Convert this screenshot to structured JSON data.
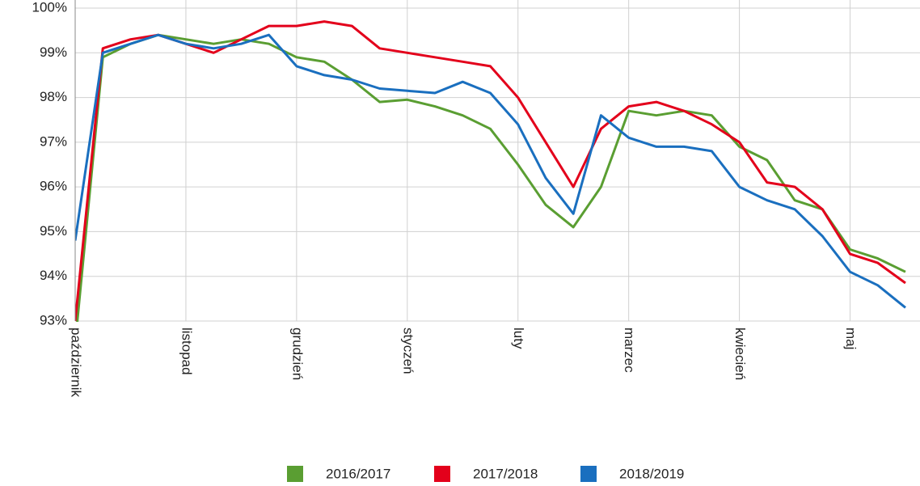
{
  "chart_data": {
    "type": "line",
    "categories": [
      "październik",
      null,
      null,
      null,
      "listopad",
      null,
      null,
      null,
      "grudzień",
      null,
      null,
      null,
      "styczeń",
      null,
      null,
      null,
      "luty",
      null,
      null,
      null,
      "marzec",
      null,
      null,
      null,
      "kwiecień",
      null,
      null,
      null,
      "maj",
      null,
      null
    ],
    "series": [
      {
        "name": "2016/2017",
        "color": "#5a9e32",
        "values": [
          92.5,
          98.9,
          99.2,
          99.4,
          99.3,
          99.2,
          99.3,
          99.2,
          98.9,
          98.8,
          98.4,
          97.9,
          97.95,
          97.8,
          97.6,
          97.3,
          96.5,
          95.6,
          95.1,
          96.0,
          97.7,
          97.6,
          97.7,
          97.6,
          96.9,
          96.6,
          95.7,
          95.5,
          94.6,
          94.4,
          94.1
        ]
      },
      {
        "name": "2017/2018",
        "color": "#e3001b",
        "values": [
          93.0,
          99.1,
          99.3,
          99.4,
          99.2,
          99.0,
          99.3,
          99.6,
          99.6,
          99.7,
          99.6,
          99.1,
          99.0,
          98.9,
          98.8,
          98.7,
          98.0,
          97.0,
          96.0,
          97.3,
          97.8,
          97.9,
          97.7,
          97.4,
          97.0,
          96.1,
          96.0,
          95.5,
          94.5,
          94.3,
          93.85
        ]
      },
      {
        "name": "2018/2019",
        "color": "#1a6fbf",
        "values": [
          94.8,
          99.0,
          99.2,
          99.4,
          99.2,
          99.1,
          99.2,
          99.4,
          98.7,
          98.5,
          98.4,
          98.2,
          98.15,
          98.1,
          98.35,
          98.1,
          97.4,
          96.2,
          95.4,
          97.6,
          97.1,
          96.9,
          96.9,
          96.8,
          96.0,
          95.7,
          95.5,
          94.9,
          94.1,
          93.8,
          93.3
        ]
      }
    ],
    "ylim": [
      93,
      100
    ],
    "yticks": [
      {
        "value": 93,
        "label": "93%"
      },
      {
        "value": 94,
        "label": "94%"
      },
      {
        "value": 95,
        "label": "95%"
      },
      {
        "value": 96,
        "label": "96%"
      },
      {
        "value": 97,
        "label": "97%"
      },
      {
        "value": 98,
        "label": "98%"
      },
      {
        "value": 99,
        "label": "99%"
      },
      {
        "value": 100,
        "label": "100%"
      }
    ],
    "grid": true,
    "legend": "bottom"
  }
}
